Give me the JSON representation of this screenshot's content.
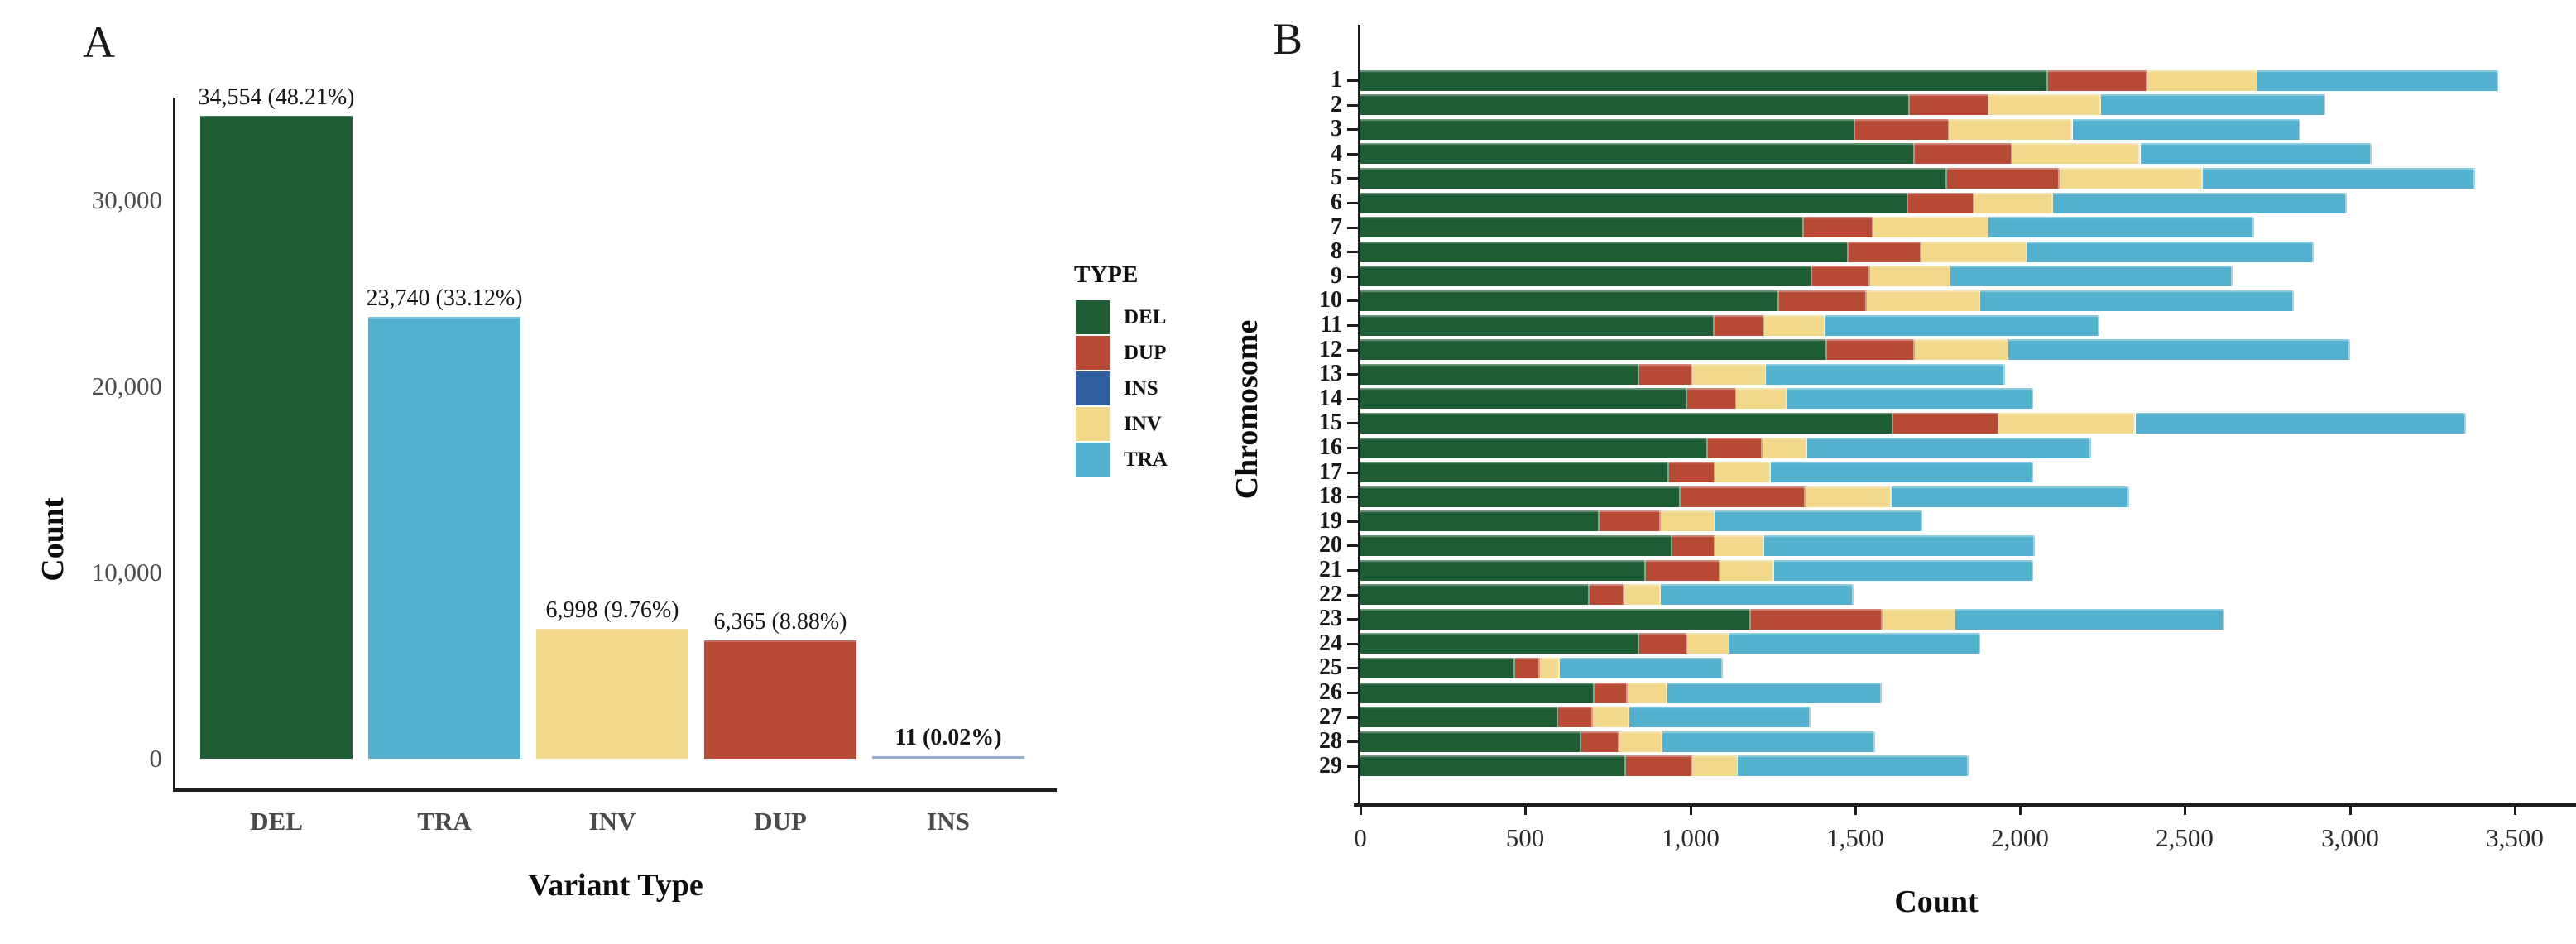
{
  "figure": {
    "panel_a_label": "A",
    "panel_b_label": "B"
  },
  "legend": {
    "title": "TYPE",
    "items": [
      {
        "label": "DEL",
        "color": "#1e5c34"
      },
      {
        "label": "DUP",
        "color": "#b74a35"
      },
      {
        "label": "INS",
        "color": "#2f5f9e"
      },
      {
        "label": "INV",
        "color": "#f2d88a"
      },
      {
        "label": "TRA",
        "color": "#53b1cf"
      }
    ]
  },
  "chart_data": [
    {
      "type": "bar",
      "title": "",
      "xlabel": "Variant Type",
      "ylabel": "Count",
      "categories": [
        "DEL",
        "TRA",
        "INV",
        "DUP",
        "INS"
      ],
      "values": [
        34554,
        23740,
        6998,
        6365,
        11
      ],
      "percents": [
        48.21,
        33.12,
        9.76,
        8.88,
        0.02
      ],
      "bar_labels": [
        "34,554 (48.21%)",
        "23,740 (33.12%)",
        "6,998 (9.76%)",
        "6,365 (8.88%)",
        "11 (0.02%)"
      ],
      "bar_label_bold": [
        false,
        false,
        false,
        false,
        true
      ],
      "bar_colors": [
        "#1e5c34",
        "#53b1cf",
        "#f2d88a",
        "#b74a35",
        "#2f5f9e"
      ],
      "ylim": [
        0,
        35000
      ],
      "y_tick_values": [
        0,
        10000,
        20000,
        30000
      ],
      "y_tick_labels": [
        "0",
        "10,000",
        "20,000",
        "30,000"
      ],
      "grid": false,
      "legend_position": "right"
    },
    {
      "type": "bar",
      "orientation": "horizontal",
      "stacked": true,
      "title": "",
      "xlabel": "Count",
      "ylabel": "Chromosome",
      "categories": [
        "1",
        "2",
        "3",
        "4",
        "5",
        "6",
        "7",
        "8",
        "9",
        "10",
        "11",
        "12",
        "13",
        "14",
        "15",
        "16",
        "17",
        "18",
        "19",
        "20",
        "21",
        "22",
        "23",
        "24",
        "25",
        "26",
        "27",
        "28",
        "29"
      ],
      "series": [
        {
          "name": "DEL",
          "color": "#1e5c34",
          "values": [
            2085,
            1665,
            1500,
            1680,
            1780,
            1660,
            1345,
            1480,
            1370,
            1270,
            1075,
            1415,
            845,
            990,
            1615,
            1055,
            935,
            970,
            725,
            945,
            865,
            695,
            1185,
            845,
            470,
            710,
            600,
            670,
            805
          ]
        },
        {
          "name": "DUP",
          "color": "#b74a35",
          "values": [
            300,
            240,
            285,
            295,
            340,
            200,
            210,
            220,
            175,
            265,
            150,
            265,
            160,
            150,
            320,
            165,
            140,
            380,
            185,
            130,
            225,
            105,
            400,
            145,
            75,
            100,
            105,
            115,
            200
          ]
        },
        {
          "name": "INS",
          "color": "#2f5f9e",
          "values": [
            0,
            0,
            0,
            0,
            0,
            0,
            0,
            0,
            0,
            0,
            0,
            0,
            0,
            0,
            0,
            0,
            0,
            0,
            0,
            0,
            0,
            0,
            0,
            0,
            0,
            0,
            0,
            0,
            0
          ]
        },
        {
          "name": "INV",
          "color": "#f2d88a",
          "values": [
            335,
            340,
            375,
            390,
            435,
            240,
            350,
            320,
            245,
            345,
            185,
            285,
            225,
            155,
            415,
            135,
            170,
            260,
            165,
            150,
            165,
            110,
            220,
            130,
            60,
            120,
            110,
            130,
            140
          ]
        },
        {
          "name": "TRA",
          "color": "#53b1cf",
          "values": [
            730,
            680,
            690,
            700,
            825,
            890,
            805,
            870,
            855,
            950,
            830,
            1035,
            725,
            745,
            1000,
            860,
            795,
            720,
            630,
            820,
            785,
            585,
            815,
            760,
            495,
            650,
            550,
            645,
            700
          ]
        }
      ],
      "stack_order": [
        "DEL",
        "DUP",
        "INS",
        "INV",
        "TRA"
      ],
      "xlim": [
        0,
        3500
      ],
      "x_tick_values": [
        0,
        500,
        1000,
        1500,
        2000,
        2500,
        3000,
        3500
      ],
      "x_tick_labels": [
        "0",
        "500",
        "1,000",
        "1,500",
        "2,000",
        "2,500",
        "3,000",
        "3,500"
      ],
      "grid": false
    }
  ]
}
